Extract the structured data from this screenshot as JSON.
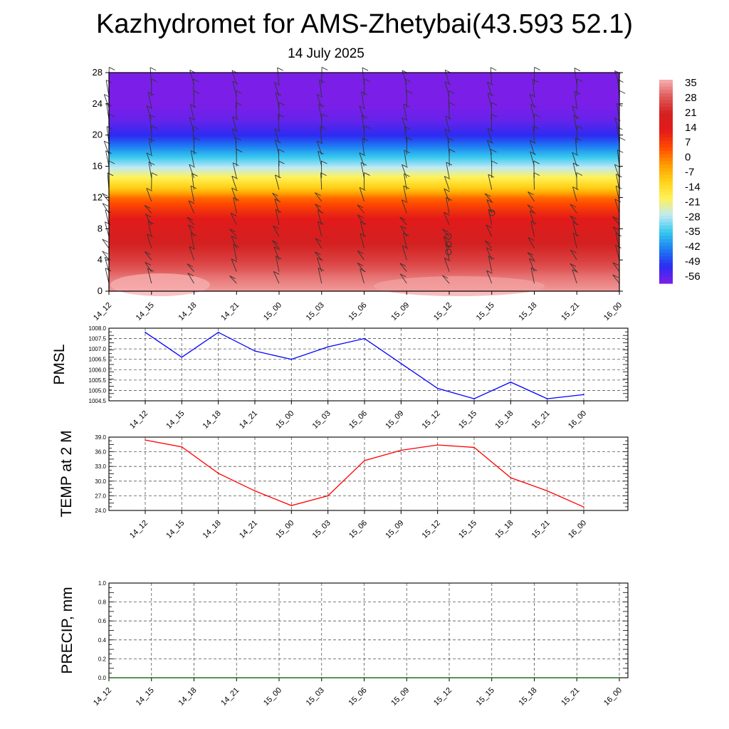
{
  "title": "Kazhydromet for AMS-Zhetybai(43.593 52.1)",
  "subtitle": "14 July 2025",
  "chart_data": [
    {
      "type": "heatmap",
      "name": "vertical-profile",
      "description_note": "",
      "x_categories": [
        "14_12",
        "14_15",
        "14_18",
        "14_21",
        "15_00",
        "15_03",
        "15_06",
        "15_09",
        "15_12",
        "15_15",
        "15_18",
        "15_21",
        "16_00"
      ],
      "y_ticks": [
        "0",
        "4",
        "8",
        "12",
        "16",
        "20",
        "24",
        "28"
      ],
      "ylim": [
        0,
        28
      ],
      "colorbar_labels": [
        "35",
        "28",
        "21",
        "14",
        "7",
        "0",
        "-7",
        "-14",
        "-21",
        "-28",
        "-35",
        "-42",
        "-49",
        "-56"
      ],
      "colorbar_range": [
        -60,
        38
      ],
      "profile_levels": [
        0,
        2,
        4,
        6,
        8,
        10,
        12,
        13,
        14,
        16,
        18,
        20,
        22,
        24,
        26,
        28
      ],
      "profile_values": [
        36,
        32,
        26,
        22,
        18,
        11,
        2,
        -8,
        -15,
        -28,
        -40,
        -52,
        -58,
        -60,
        -60,
        -60
      ],
      "colors": {
        "stops": [
          "#7b1fe8",
          "#2c2cf2",
          "#1e7cf2",
          "#35c8ee",
          "#bfe9f5",
          "#fff25a",
          "#ffd21a",
          "#ff9a00",
          "#ff4a00",
          "#e31a1a",
          "#d42020",
          "#e05a5a",
          "#f7b0b0"
        ]
      }
    },
    {
      "type": "line",
      "name": "pmsl",
      "ylabel": "PMSL",
      "categories": [
        "14_12",
        "14_15",
        "14_18",
        "14_21",
        "15_00",
        "15_03",
        "15_06",
        "15_09",
        "15_12",
        "15_15",
        "15_18",
        "15_21",
        "16_00"
      ],
      "yticks": [
        "1004.5",
        "1005.0",
        "1005.5",
        "1006.0",
        "1006.5",
        "1007.0",
        "1007.5",
        "1008.0"
      ],
      "ylim": [
        1004.5,
        1008.0
      ],
      "values": [
        1007.8,
        1006.6,
        1007.8,
        1006.9,
        1006.5,
        1007.1,
        1007.5,
        1006.3,
        1005.1,
        1004.6,
        1005.4,
        1004.6,
        1004.8
      ],
      "color": "#0000ff"
    },
    {
      "type": "line",
      "name": "temp-2m",
      "ylabel": "TEMP at 2 M",
      "categories": [
        "14_12",
        "14_15",
        "14_18",
        "14_21",
        "15_00",
        "15_03",
        "15_06",
        "15_09",
        "15_12",
        "15_15",
        "15_18",
        "15_21",
        "16_00"
      ],
      "yticks": [
        "24.0",
        "27.0",
        "30.0",
        "33.0",
        "36.0",
        "39.0"
      ],
      "ylim": [
        24.0,
        39.0
      ],
      "values": [
        38.4,
        37.0,
        31.6,
        28.0,
        25.0,
        27.0,
        34.2,
        36.3,
        37.4,
        36.9,
        30.7,
        28.0,
        24.7
      ],
      "color": "#ff0000"
    },
    {
      "type": "line",
      "name": "precip",
      "ylabel": "PRECIP, mm",
      "categories": [
        "14_12",
        "14_15",
        "14_18",
        "14_21",
        "15_00",
        "15_03",
        "15_06",
        "15_09",
        "15_12",
        "15_15",
        "15_18",
        "15_21",
        "16_00"
      ],
      "yticks": [
        "0.0",
        "0.2",
        "0.4",
        "0.6",
        "0.8",
        "1.0"
      ],
      "ylim": [
        0.0,
        1.0
      ],
      "values": [
        0,
        0,
        0,
        0,
        0,
        0,
        0,
        0,
        0,
        0,
        0,
        0,
        0
      ],
      "color": "#006400"
    }
  ]
}
